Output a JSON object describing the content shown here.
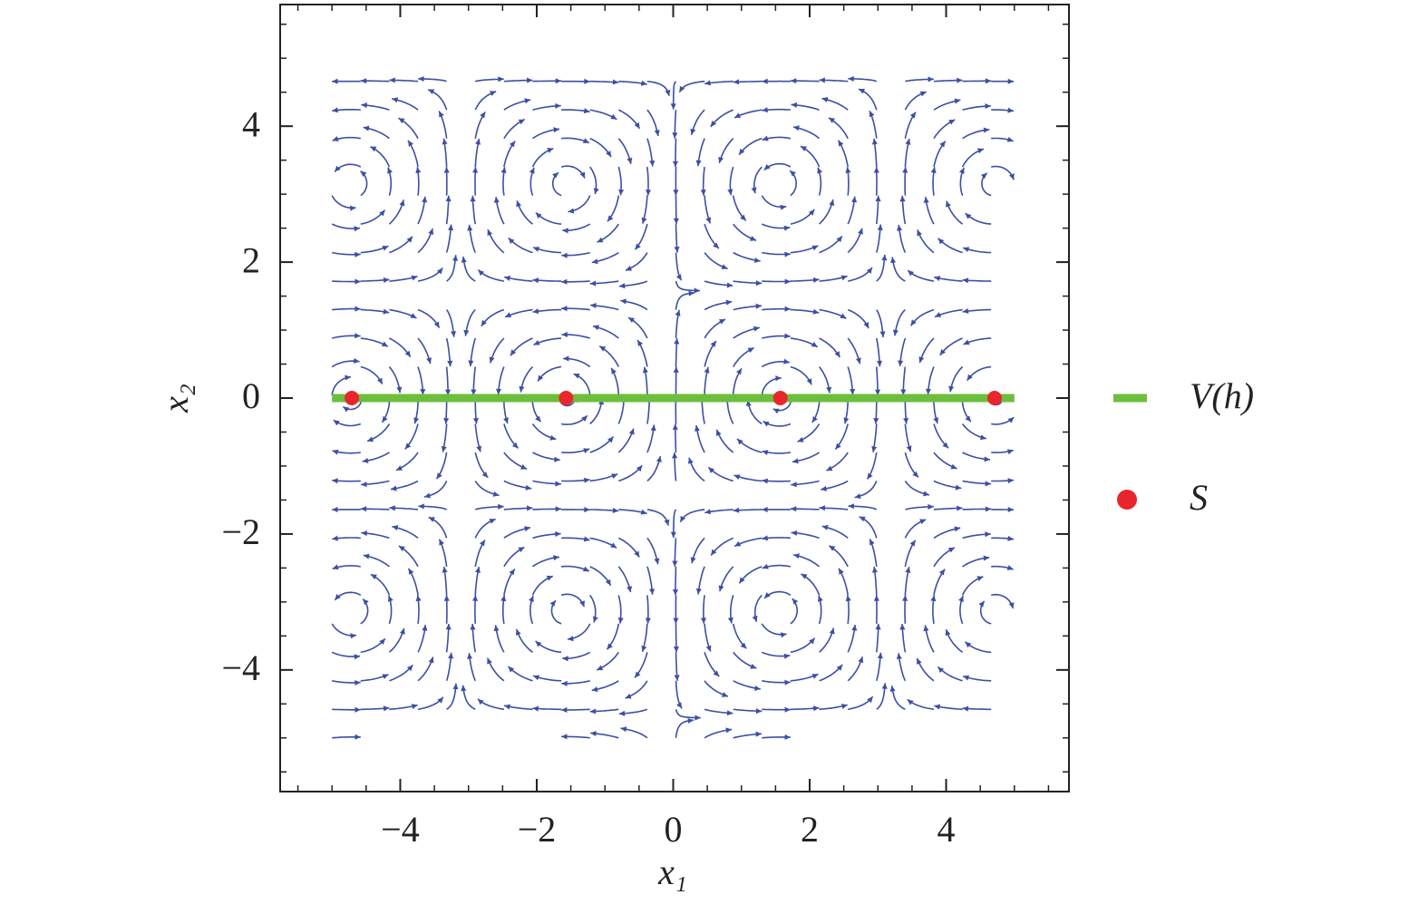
{
  "chart_data": {
    "type": "streamplot",
    "x_label": "x₁",
    "y_label": "x₂",
    "xlim": [
      -5.76,
      5.8
    ],
    "ylim": [
      -5.79,
      5.79
    ],
    "xticks": [
      {
        "value": -4,
        "label": "−4"
      },
      {
        "value": -2,
        "label": "−2"
      },
      0,
      2,
      4
    ],
    "yticks": [
      {
        "value": -4,
        "label": "−4"
      },
      {
        "value": -2,
        "label": "−2"
      },
      0,
      2,
      4
    ],
    "legend": "right",
    "stream_color": "#3b4fa3",
    "series": [
      {
        "name": "V(h)",
        "kind": "line",
        "color": "#6cbf3c",
        "x": [
          -5,
          5
        ],
        "y": [
          0,
          0
        ]
      },
      {
        "name": "S",
        "kind": "scatter",
        "color": "#e8262b",
        "x": [
          -4.71,
          -1.57,
          1.57,
          4.71
        ],
        "y": [
          0,
          0,
          0,
          0
        ]
      }
    ]
  }
}
